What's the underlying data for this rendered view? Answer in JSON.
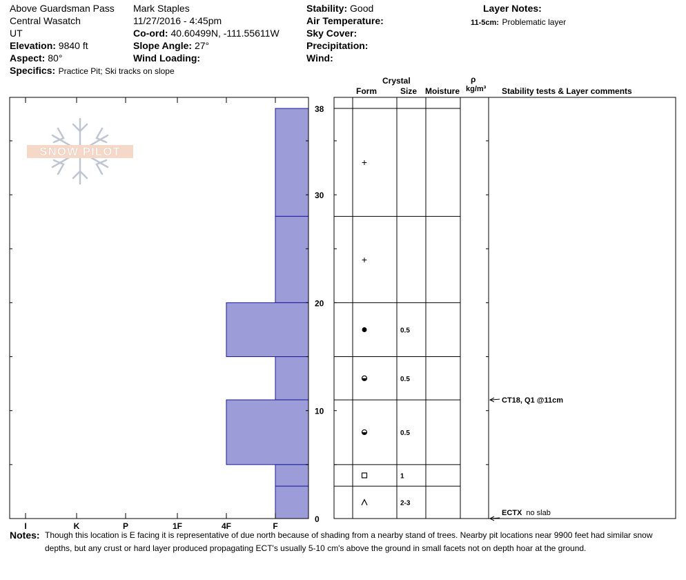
{
  "header": {
    "location": "Above Guardsman Pass",
    "range": "Central Wasatch",
    "state": "UT",
    "elevation": {
      "label": "Elevation:",
      "value": "9840 ft"
    },
    "aspect": {
      "label": "Aspect:",
      "value": "80°"
    },
    "specifics": {
      "label": "Specifics:",
      "value": "Practice Pit; Ski tracks on slope"
    },
    "observer": "Mark Staples",
    "datetime": "11/27/2016 - 4:45pm",
    "coord": {
      "label": "Co-ord:",
      "value": "40.60499N, -111.55611W"
    },
    "slope_angle": {
      "label": "Slope Angle:",
      "value": "27°"
    },
    "wind_loading": {
      "label": "Wind Loading:",
      "value": ""
    },
    "stability": {
      "label": "Stability:",
      "value": "Good"
    },
    "air_temp": {
      "label": "Air Temperature:",
      "value": ""
    },
    "sky_cover": {
      "label": "Sky Cover:",
      "value": ""
    },
    "precipitation": {
      "label": "Precipitation:",
      "value": ""
    },
    "wind": {
      "label": "Wind:",
      "value": ""
    },
    "layer_notes": {
      "title": "Layer Notes:",
      "range": "11-5cm:",
      "text": "Problematic layer"
    }
  },
  "logo": {
    "text": "SNOW PILOT"
  },
  "columns": {
    "crystal": "Crystal",
    "form": "Form",
    "size": "Size",
    "moisture": "Moisture",
    "rho": "ρ",
    "density_unit": "kg/m³",
    "stability": "Stability tests & Layer comments"
  },
  "chart_data": {
    "type": "bar",
    "title": "",
    "xlabel": "",
    "ylabel": "",
    "hardness_scale": [
      "I",
      "K",
      "P",
      "1F",
      "4F",
      "F"
    ],
    "y_ticks": [
      0,
      10,
      20,
      30,
      38
    ],
    "ylim": [
      0,
      38
    ],
    "layers": [
      {
        "top": 38,
        "bottom": 28,
        "hardness": "F"
      },
      {
        "top": 28,
        "bottom": 20,
        "hardness": "F"
      },
      {
        "top": 20,
        "bottom": 15,
        "hardness": "4F"
      },
      {
        "top": 15,
        "bottom": 11,
        "hardness": "F"
      },
      {
        "top": 11,
        "bottom": 5,
        "hardness": "4F"
      },
      {
        "top": 5,
        "bottom": 3,
        "hardness": "F"
      },
      {
        "top": 3,
        "bottom": 0,
        "hardness": "F"
      }
    ],
    "bar_color": "#9c9cd9",
    "crystal_layers": [
      {
        "top": 38,
        "bottom": 28,
        "form": "+",
        "size": ""
      },
      {
        "top": 28,
        "bottom": 20,
        "form": "+",
        "size": ""
      },
      {
        "top": 20,
        "bottom": 15,
        "form": "●",
        "size": "0.5"
      },
      {
        "top": 15,
        "bottom": 11,
        "form": "half-dot",
        "size": "0.5"
      },
      {
        "top": 11,
        "bottom": 5,
        "form": "half-dot",
        "size": "0.5"
      },
      {
        "top": 5,
        "bottom": 3,
        "form": "□",
        "size": "1"
      },
      {
        "top": 3,
        "bottom": 0,
        "form": "^",
        "size": "2-3"
      }
    ],
    "stability_tests": [
      {
        "depth": 11,
        "bold": "CT18, Q1 @11cm",
        "text": ""
      },
      {
        "depth": 0,
        "bold": "ECTX",
        "text": "no slab"
      }
    ]
  },
  "notes": {
    "label": "Notes:",
    "line1": "Though this location is E facing it is representative of due north because of shading from a nearby stand of trees. Nearby pit locations near 9900 feet had similar snow",
    "line2": "depths, but any crust or hard layer produced propagating ECT's usually 5-10 cm's above the ground in small facets not on depth hoar at the ground."
  }
}
